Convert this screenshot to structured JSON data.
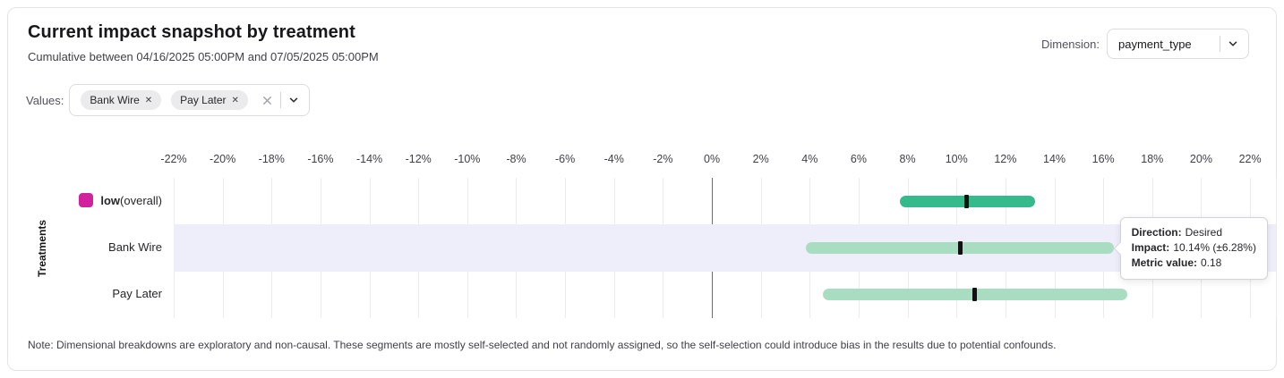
{
  "header": {
    "title": "Current impact snapshot by treatment",
    "subtitle": "Cumulative between 04/16/2025 05:00PM and 07/05/2025 05:00PM",
    "dimension_label": "Dimension:",
    "dimension_value": "payment_type"
  },
  "filters": {
    "values_label": "Values:",
    "chips": [
      {
        "label": "Bank Wire",
        "remove_glyph": "✕"
      },
      {
        "label": "Pay Later",
        "remove_glyph": "✕"
      }
    ]
  },
  "chart_data": {
    "type": "bar",
    "variant": "horizontal-interval",
    "axis_title": "Treatments",
    "x_unit": "%",
    "xlim": [
      -22,
      22
    ],
    "grid": true,
    "x_tick_values": [
      -22,
      -20,
      -18,
      -16,
      -14,
      -12,
      -10,
      -8,
      -6,
      -4,
      -2,
      0,
      2,
      4,
      6,
      8,
      10,
      12,
      14,
      16,
      18,
      20,
      22
    ],
    "x_tick_labels": [
      "-22%",
      "-20%",
      "-18%",
      "-16%",
      "-14%",
      "-12%",
      "-10%",
      "-8%",
      "-6%",
      "-4%",
      "-2%",
      "0%",
      "2%",
      "4%",
      "6%",
      "8%",
      "10%",
      "12%",
      "14%",
      "16%",
      "18%",
      "20%",
      "22%"
    ],
    "colors": {
      "overall_bar": "#35bb8b",
      "segment_bar": "#a9ddc2",
      "median_tick": "#111111",
      "legend_swatch": "#d1219c",
      "highlight_band": "#eeeefb"
    },
    "rows": [
      {
        "label": "low",
        "suffix": " (overall)",
        "legend_color": "#d1219c",
        "bar_color": "#35bb8b",
        "impact": 10.4,
        "ci_low": 7.7,
        "ci_high": 13.2,
        "highlighted": false
      },
      {
        "label": "Bank Wire",
        "bar_color": "#a9ddc2",
        "impact": 10.14,
        "ci_low": 3.86,
        "ci_high": 16.42,
        "highlighted": true,
        "direction": "Desired",
        "metric_value": 0.18
      },
      {
        "label": "Pay Later",
        "bar_color": "#a9ddc2",
        "impact": 10.75,
        "ci_low": 4.55,
        "ci_high": 17.0,
        "highlighted": false
      }
    ]
  },
  "tooltip": {
    "anchor_row": "Bank Wire",
    "direction_label": "Direction:",
    "direction_value": "Desired",
    "impact_label": "Impact:",
    "impact_value": "10.14% (±6.28%)",
    "metric_label": "Metric value:",
    "metric_value": "0.18"
  },
  "note": "Note: Dimensional breakdowns are exploratory and non-causal. These segments are mostly self-selected and not randomly assigned, so the self-selection could introduce bias in the results due to potential confounds."
}
